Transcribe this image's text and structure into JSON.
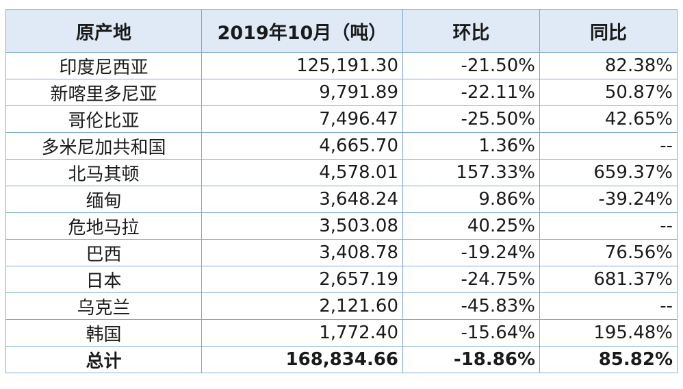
{
  "table": {
    "headers": [
      "原产地",
      "2019年10月（吨）",
      "环比",
      "同比"
    ],
    "rows": [
      {
        "origin": "印度尼西亚",
        "volume": "125,191.30",
        "mom": "-21.50%",
        "yoy": "82.38%"
      },
      {
        "origin": "新喀里多尼亚",
        "volume": "9,791.89",
        "mom": "-22.11%",
        "yoy": "50.87%"
      },
      {
        "origin": "哥伦比亚",
        "volume": "7,496.47",
        "mom": "-25.50%",
        "yoy": "42.65%"
      },
      {
        "origin": "多米尼加共和国",
        "volume": "4,665.70",
        "mom": "1.36%",
        "yoy": "--"
      },
      {
        "origin": "北马其顿",
        "volume": "4,578.01",
        "mom": "157.33%",
        "yoy": "659.37%"
      },
      {
        "origin": "缅甸",
        "volume": "3,648.24",
        "mom": "9.86%",
        "yoy": "-39.24%"
      },
      {
        "origin": "危地马拉",
        "volume": "3,503.08",
        "mom": "40.25%",
        "yoy": "--"
      },
      {
        "origin": "巴西",
        "volume": "3,408.78",
        "mom": "-19.24%",
        "yoy": "76.56%"
      },
      {
        "origin": "日本",
        "volume": "2,657.19",
        "mom": "-24.75%",
        "yoy": "681.37%"
      },
      {
        "origin": "乌克兰",
        "volume": "2,121.60",
        "mom": "-45.83%",
        "yoy": "--"
      },
      {
        "origin": "韩国",
        "volume": "1,772.40",
        "mom": "-15.64%",
        "yoy": "195.48%"
      }
    ],
    "total": {
      "origin": "总计",
      "volume": "168,834.66",
      "mom": "-18.86%",
      "yoy": "85.82%"
    }
  },
  "colors": {
    "header_bg": "#dfeaf6",
    "border": "#7fa9d6",
    "text": "#1a1a1a"
  }
}
